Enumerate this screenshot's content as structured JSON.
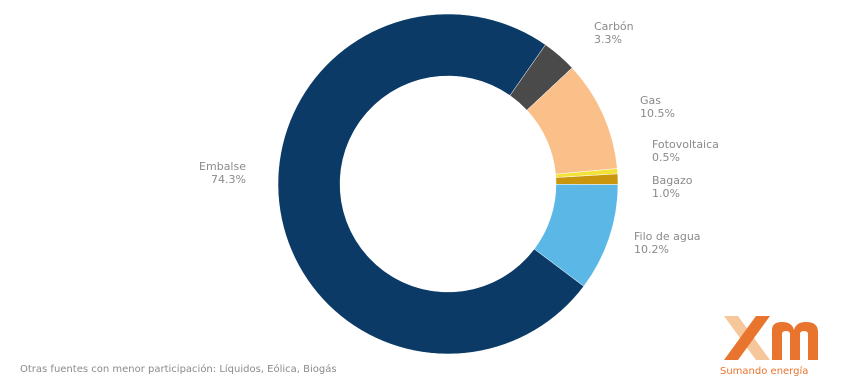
{
  "chart_data": {
    "type": "pie",
    "donut": true,
    "categories": [
      "Embalse",
      "Carbón",
      "Gas",
      "Fotovoltaica",
      "Bagazo",
      "Filo de agua"
    ],
    "values": [
      74.3,
      3.3,
      10.5,
      0.5,
      1.0,
      10.2
    ],
    "value_labels": [
      "74.3%",
      "3.3%",
      "10.5%",
      "0.5%",
      "1.0%",
      "10.2%"
    ],
    "colors": [
      "#0b3a66",
      "#4a4a4a",
      "#fbbf8a",
      "#f2e23a",
      "#c9960e",
      "#5bb8e6"
    ],
    "legend": "none",
    "title": ""
  },
  "footnote": "Otras fuentes con menor participación: Líquidos, Eólica, Biogás",
  "logo": {
    "mark": "xm",
    "tagline": "Sumando energía",
    "colors": {
      "x_light": "#f6c79a",
      "x_dark": "#e8742e",
      "m": "#e8742e"
    }
  }
}
